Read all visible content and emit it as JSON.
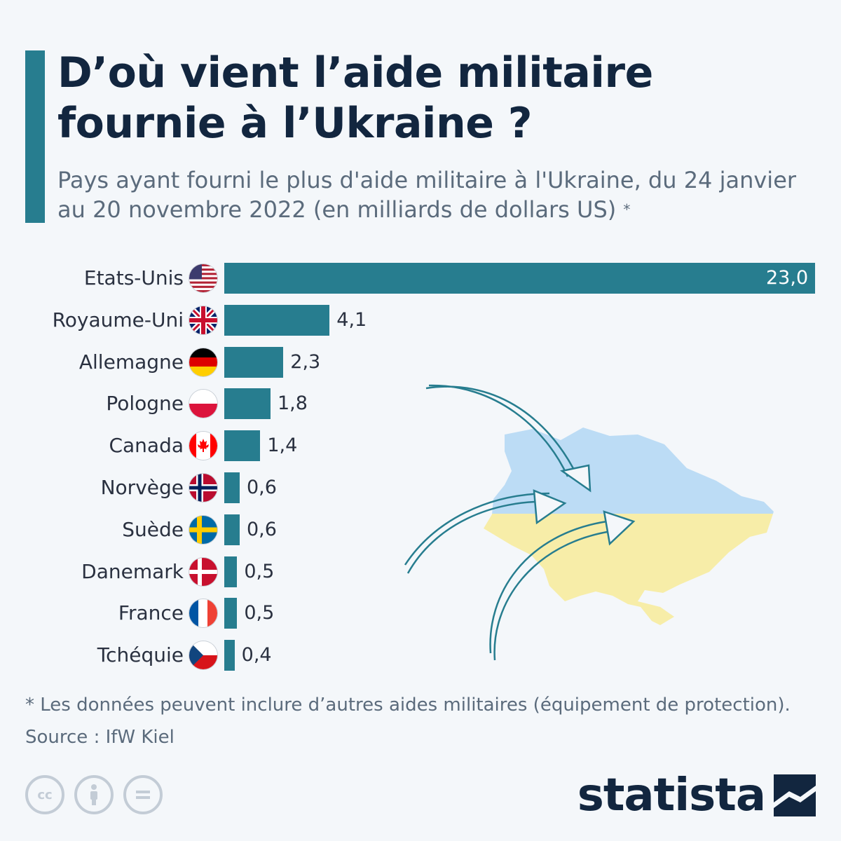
{
  "header": {
    "title": "D’où vient l’aide militaire fournie à l’Ukraine ?",
    "subtitle": "Pays ayant fourni le plus d'aide militaire à l'Ukraine, du 24 janvier au 20 novembre 2022 (en milliards de dollars US)",
    "subtitle_marker": "*"
  },
  "chart_data": {
    "type": "bar",
    "orientation": "horizontal",
    "categories": [
      "Etats-Unis",
      "Royaume-Uni",
      "Allemagne",
      "Pologne",
      "Canada",
      "Norvège",
      "Suède",
      "Danemark",
      "France",
      "Tchéquie"
    ],
    "values": [
      23.0,
      4.1,
      2.3,
      1.8,
      1.4,
      0.6,
      0.6,
      0.5,
      0.5,
      0.4
    ],
    "value_labels": [
      "23,0",
      "4,1",
      "2,3",
      "1,8",
      "1,4",
      "0,6",
      "0,6",
      "0,5",
      "0,5",
      "0,4"
    ],
    "flags": [
      "usa-flag-icon",
      "uk-flag-icon",
      "germany-flag-icon",
      "poland-flag-icon",
      "canada-flag-icon",
      "norway-flag-icon",
      "sweden-flag-icon",
      "denmark-flag-icon",
      "france-flag-icon",
      "czechia-flag-icon"
    ],
    "xlim": [
      0,
      23.0
    ],
    "bar_color": "#277d8f",
    "grid": false
  },
  "illustration": {
    "map_icon": "ukraine-map-icon",
    "arrow_icon": "curved-arrow-icon",
    "colors": {
      "top": "#bcdcf5",
      "bottom": "#f7eda8",
      "arrow": "#277d8f"
    }
  },
  "footer": {
    "footnote": "* Les données peuvent inclure d’autres aides militaires (équipement de protection).",
    "source": "Source : IfW Kiel",
    "license_icons": [
      "cc-icon",
      "by-icon",
      "nd-icon"
    ],
    "brand": "statista",
    "brand_icon": "statista-logo-icon"
  }
}
